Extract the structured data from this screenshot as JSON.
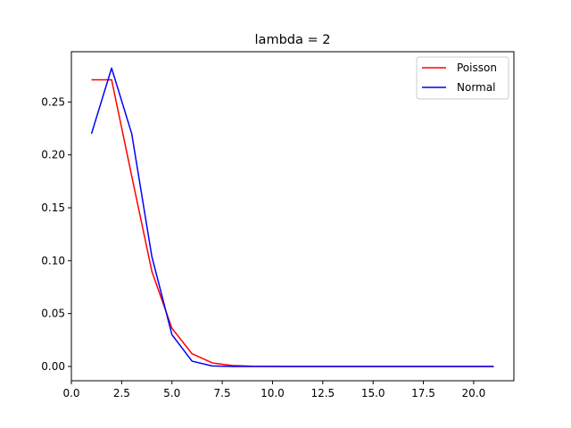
{
  "chart_data": {
    "type": "line",
    "title": "lambda = 2",
    "xlabel": "",
    "ylabel": "",
    "xlim": [
      0,
      22
    ],
    "ylim": [
      -0.0135,
      0.2975
    ],
    "xticks": [
      0,
      2.5,
      5,
      7.5,
      10,
      12.5,
      15,
      17.5,
      20
    ],
    "xtick_labels": [
      "0.0",
      "2.5",
      "5.0",
      "7.5",
      "10.0",
      "12.5",
      "15.0",
      "17.5",
      "20.0"
    ],
    "yticks": [
      0,
      0.05,
      0.1,
      0.15,
      0.2,
      0.25
    ],
    "ytick_labels": [
      "0.00",
      "0.05",
      "0.10",
      "0.15",
      "0.20",
      "0.25"
    ],
    "grid": false,
    "legend_position": "top-right",
    "x": [
      1,
      2,
      3,
      4,
      5,
      6,
      7,
      8,
      9,
      10,
      11,
      12,
      13,
      14,
      15,
      16,
      17,
      18,
      19,
      20,
      21
    ],
    "series": [
      {
        "name": "Poisson",
        "color": "#ff0000",
        "values": [
          0.271,
          0.271,
          0.18,
          0.09,
          0.036,
          0.012,
          0.0034,
          0.0009,
          0.0002,
          4e-05,
          1e-05,
          0,
          0,
          0,
          0,
          0,
          0,
          0,
          0,
          0,
          0
        ]
      },
      {
        "name": "Normal",
        "color": "#0000ff",
        "values": [
          0.22,
          0.282,
          0.22,
          0.104,
          0.03,
          0.005,
          0.0005,
          3e-05,
          0,
          0,
          0,
          0,
          0,
          0,
          0,
          0,
          0,
          0,
          0,
          0,
          0
        ]
      }
    ]
  }
}
